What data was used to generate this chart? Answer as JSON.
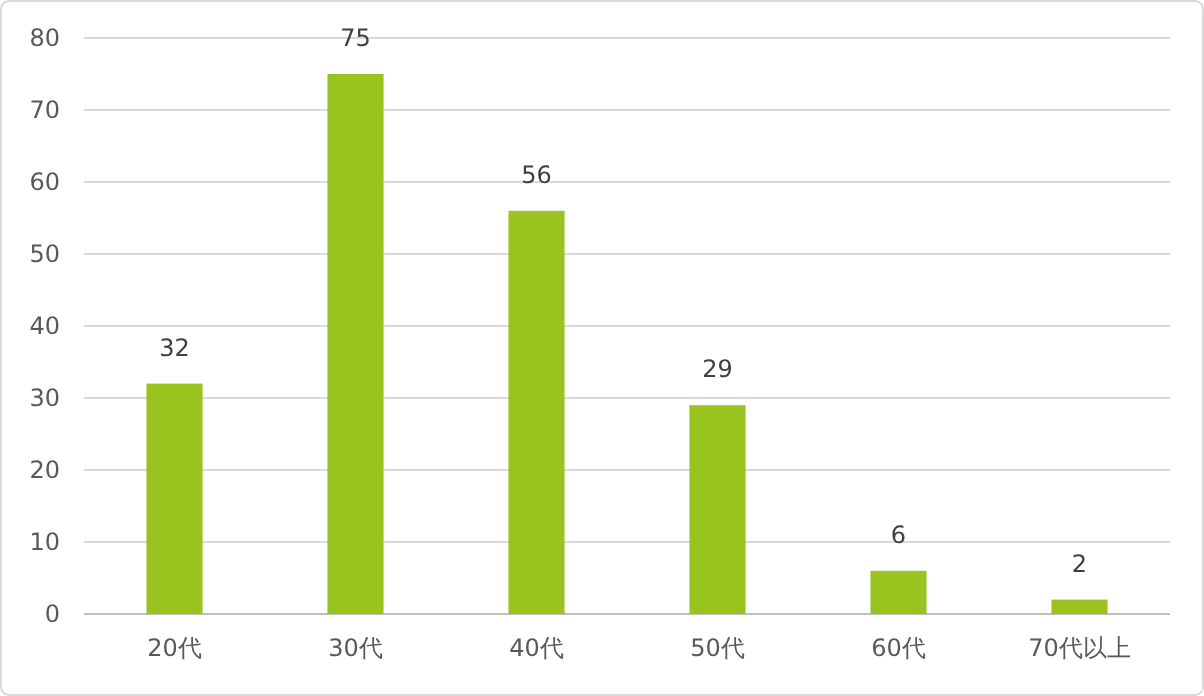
{
  "chart_data": {
    "type": "bar",
    "categories": [
      "20代",
      "30代",
      "40代",
      "50代",
      "60代",
      "70代以上"
    ],
    "values": [
      32,
      75,
      56,
      29,
      6,
      2
    ],
    "color": "#99c31f",
    "ylim": [
      0,
      80
    ],
    "yticks": [
      0,
      10,
      20,
      30,
      40,
      50,
      60,
      70,
      80
    ],
    "grid": "y",
    "data_labels": true
  }
}
